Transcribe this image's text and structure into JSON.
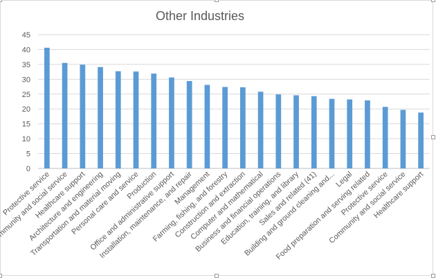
{
  "chart_data": {
    "type": "bar",
    "title": "Other Industries",
    "xlabel": "",
    "ylabel": "",
    "ylim": [
      0,
      45
    ],
    "yticks": [
      0,
      5,
      10,
      15,
      20,
      25,
      30,
      35,
      40,
      45
    ],
    "grid": true,
    "legend": "none",
    "bar_color": "#5b9bd5",
    "categories": [
      "Protective service",
      "Community and social service",
      "Healthcare support",
      "Architecture and engineering",
      "Transportation and material moving",
      "Personal care and service",
      "Production",
      "Office and administrative support",
      "Installation, maintenance, and repair",
      "Management",
      "Farming, fishing, and forestry",
      "Construction and extraction",
      "Computer and mathematical",
      "Business and financial operations",
      "Education, training, and library",
      "Sales and related (41)",
      "Building and ground cleaning and...",
      "Legal",
      "Food preparation and serving related",
      "Protective service",
      "Community and social service",
      "Healthcare support"
    ],
    "values": [
      40.6,
      35.5,
      34.9,
      34.1,
      32.7,
      32.6,
      31.9,
      30.6,
      29.4,
      28.1,
      27.4,
      27.3,
      25.8,
      24.9,
      24.6,
      24.3,
      23.4,
      23.2,
      22.9,
      20.7,
      19.7,
      18.8
    ]
  }
}
